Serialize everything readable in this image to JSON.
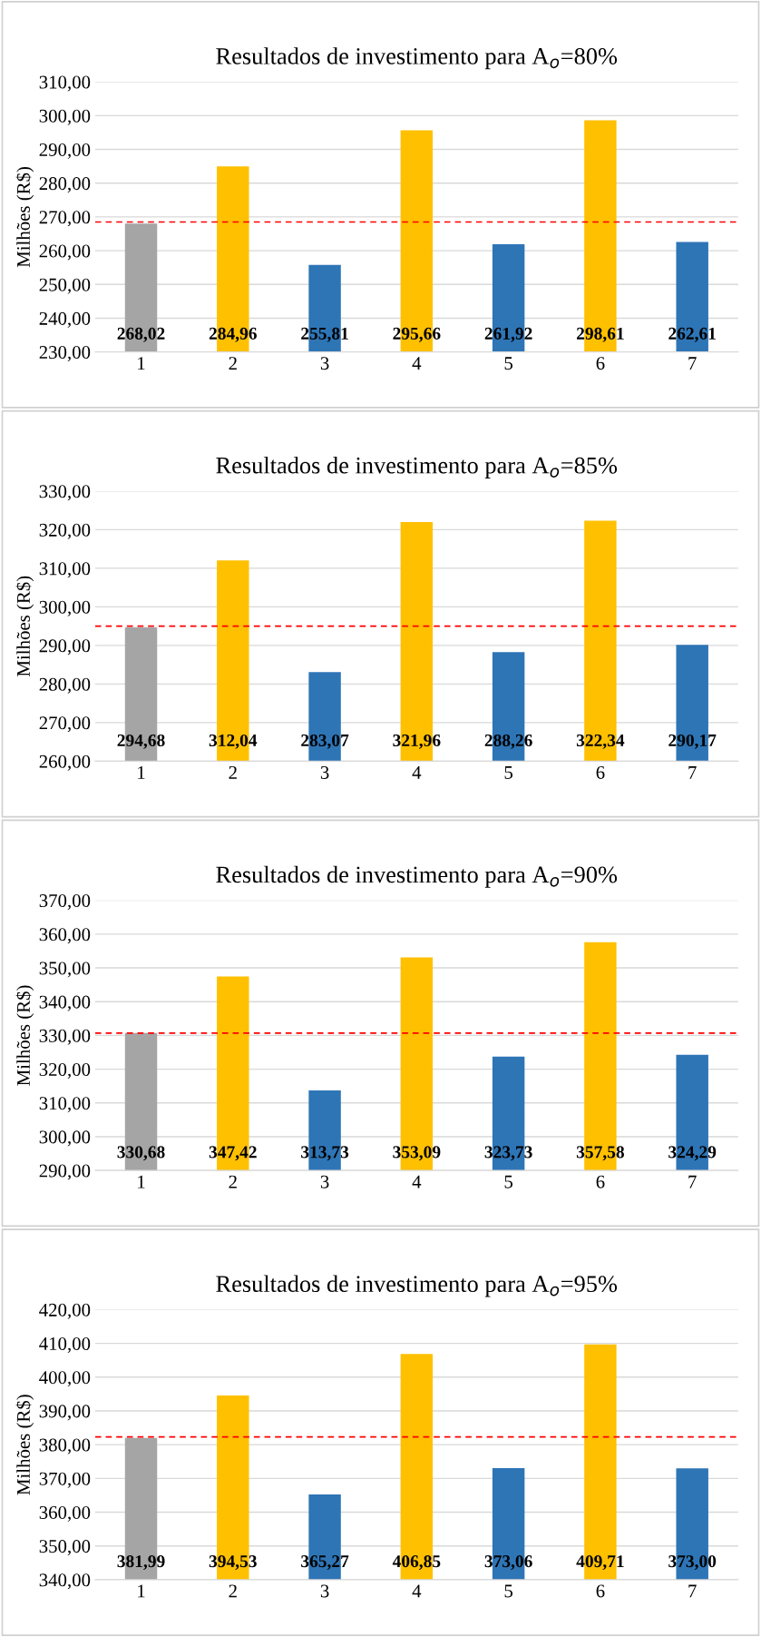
{
  "chart_data": [
    {
      "type": "bar",
      "title": "Resultados de investimento para A$_{o}$=80%",
      "ylabel": "Milhões (R$)",
      "categories": [
        "1",
        "2",
        "3",
        "4",
        "5",
        "6",
        "7"
      ],
      "values": [
        268.02,
        284.96,
        255.81,
        295.66,
        261.92,
        298.61,
        262.61
      ],
      "colors": [
        "#a5a5a5",
        "#ffc000",
        "#2e75b6",
        "#ffc000",
        "#2e75b6",
        "#ffc000",
        "#2e75b6"
      ],
      "value_labels": [
        "268,02",
        "284,96",
        "255,81",
        "295,66",
        "261,92",
        "298,61",
        "262,61"
      ],
      "ylim": [
        230,
        310
      ],
      "yticks": [
        {
          "value": 230,
          "label": "230,00"
        },
        {
          "value": 240,
          "label": "240,00"
        },
        {
          "value": 250,
          "label": "250,00"
        },
        {
          "value": 260,
          "label": "260,00"
        },
        {
          "value": 270,
          "label": "270,00"
        },
        {
          "value": 280,
          "label": "280,00"
        },
        {
          "value": 290,
          "label": "290,00"
        },
        {
          "value": 300,
          "label": "300,00"
        },
        {
          "value": 310,
          "label": "310,00"
        }
      ],
      "grid": "y",
      "legend": false,
      "ref_lines": [
        {
          "axis": "y",
          "value": 268.5,
          "color": "#ff0000",
          "line_style": "dashed"
        }
      ]
    },
    {
      "type": "bar",
      "title": "Resultados de investimento para A$_{o}$=85%",
      "ylabel": "Milhões (R$)",
      "categories": [
        "1",
        "2",
        "3",
        "4",
        "5",
        "6",
        "7"
      ],
      "values": [
        294.68,
        312.04,
        283.07,
        321.96,
        288.26,
        322.34,
        290.17
      ],
      "colors": [
        "#a5a5a5",
        "#ffc000",
        "#2e75b6",
        "#ffc000",
        "#2e75b6",
        "#ffc000",
        "#2e75b6"
      ],
      "value_labels": [
        "294,68",
        "312,04",
        "283,07",
        "321,96",
        "288,26",
        "322,34",
        "290,17"
      ],
      "ylim": [
        260,
        330
      ],
      "yticks": [
        {
          "value": 260,
          "label": "260,00"
        },
        {
          "value": 270,
          "label": "270,00"
        },
        {
          "value": 280,
          "label": "280,00"
        },
        {
          "value": 290,
          "label": "290,00"
        },
        {
          "value": 300,
          "label": "300,00"
        },
        {
          "value": 310,
          "label": "310,00"
        },
        {
          "value": 320,
          "label": "320,00"
        },
        {
          "value": 330,
          "label": "330,00"
        }
      ],
      "grid": "y",
      "legend": false,
      "ref_lines": [
        {
          "axis": "y",
          "value": 295,
          "color": "#ff0000",
          "line_style": "dashed"
        }
      ]
    },
    {
      "type": "bar",
      "title": "Resultados de investimento para A$_{o}$=90%",
      "ylabel": "Milhões (R$)",
      "categories": [
        "1",
        "2",
        "3",
        "4",
        "5",
        "6",
        "7"
      ],
      "values": [
        330.68,
        347.42,
        313.73,
        353.09,
        323.73,
        357.58,
        324.29
      ],
      "colors": [
        "#a5a5a5",
        "#ffc000",
        "#2e75b6",
        "#ffc000",
        "#2e75b6",
        "#ffc000",
        "#2e75b6"
      ],
      "value_labels": [
        "330,68",
        "347,42",
        "313,73",
        "353,09",
        "323,73",
        "357,58",
        "324,29"
      ],
      "ylim": [
        290,
        370
      ],
      "yticks": [
        {
          "value": 290,
          "label": "290,00"
        },
        {
          "value": 300,
          "label": "300,00"
        },
        {
          "value": 310,
          "label": "310,00"
        },
        {
          "value": 320,
          "label": "320,00"
        },
        {
          "value": 330,
          "label": "330,00"
        },
        {
          "value": 340,
          "label": "340,00"
        },
        {
          "value": 350,
          "label": "350,00"
        },
        {
          "value": 360,
          "label": "360,00"
        },
        {
          "value": 370,
          "label": "370,00"
        }
      ],
      "grid": "y",
      "legend": false,
      "ref_lines": [
        {
          "axis": "y",
          "value": 330.7,
          "color": "#ff0000",
          "line_style": "dashed"
        }
      ]
    },
    {
      "type": "bar",
      "title": "Resultados de investimento para A$_{o}$=95%",
      "ylabel": "Milhões (R$)",
      "categories": [
        "1",
        "2",
        "3",
        "4",
        "5",
        "6",
        "7"
      ],
      "values": [
        381.99,
        394.53,
        365.27,
        406.85,
        373.06,
        409.71,
        373.0
      ],
      "colors": [
        "#a5a5a5",
        "#ffc000",
        "#2e75b6",
        "#ffc000",
        "#2e75b6",
        "#ffc000",
        "#2e75b6"
      ],
      "value_labels": [
        "381,99",
        "394,53",
        "365,27",
        "406,85",
        "373,06",
        "409,71",
        "373,00"
      ],
      "ylim": [
        340,
        420
      ],
      "yticks": [
        {
          "value": 340,
          "label": "340,00"
        },
        {
          "value": 350,
          "label": "350,00"
        },
        {
          "value": 360,
          "label": "360,00"
        },
        {
          "value": 370,
          "label": "370,00"
        },
        {
          "value": 380,
          "label": "380,00"
        },
        {
          "value": 390,
          "label": "390,00"
        },
        {
          "value": 400,
          "label": "400,00"
        },
        {
          "value": 410,
          "label": "410,00"
        },
        {
          "value": 420,
          "label": "420,00"
        }
      ],
      "grid": "y",
      "legend": false,
      "ref_lines": [
        {
          "axis": "y",
          "value": 382.3,
          "color": "#ff0000",
          "line_style": "dashed"
        }
      ]
    }
  ]
}
